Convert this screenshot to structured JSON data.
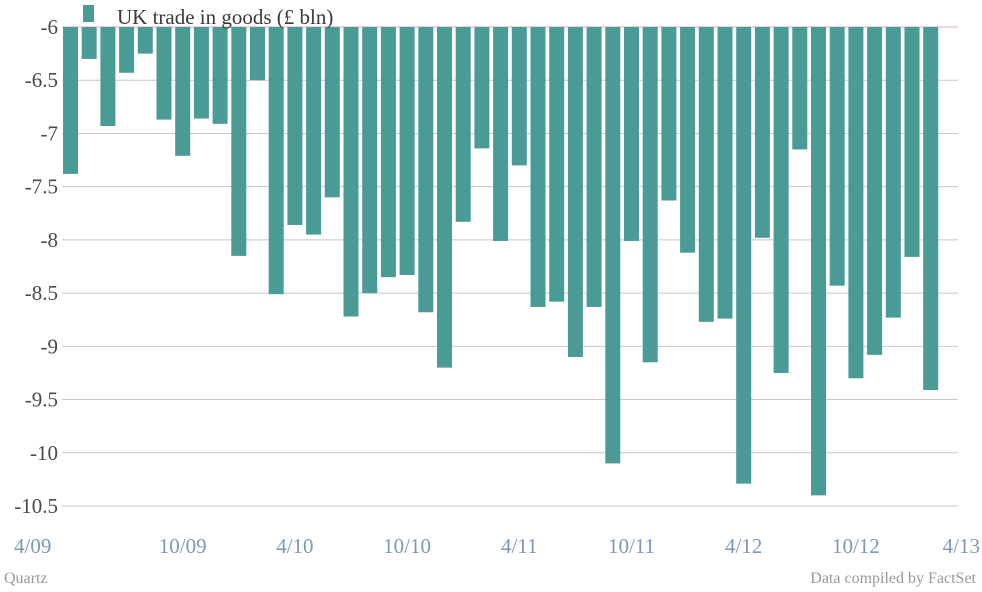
{
  "chart_data": {
    "type": "bar",
    "series": [
      {
        "name": "UK trade in goods (£ bln)",
        "values": [
          -7.38,
          -6.3,
          -6.93,
          -6.43,
          -6.25,
          -6.87,
          -7.21,
          -6.86,
          -6.91,
          -8.15,
          -6.5,
          -8.51,
          -7.86,
          -7.95,
          -7.6,
          -8.72,
          -8.5,
          -8.35,
          -8.33,
          -8.68,
          -9.2,
          -7.83,
          -7.14,
          -8.01,
          -7.3,
          -8.63,
          -8.58,
          -9.1,
          -8.63,
          -10.1,
          -8.01,
          -9.15,
          -7.63,
          -8.12,
          -8.77,
          -8.74,
          -10.29,
          -7.98,
          -9.25,
          -7.15,
          -10.4,
          -8.43,
          -9.3,
          -9.08,
          -8.73,
          -8.16,
          -9.41
        ]
      }
    ],
    "x_tick_labels": [
      "4/09",
      "10/09",
      "4/10",
      "10/10",
      "4/11",
      "10/11",
      "4/12",
      "10/12",
      "4/13"
    ],
    "y_ticks": [
      -6,
      -6.5,
      -7,
      -7.5,
      -8,
      -8.5,
      -9,
      -9.5,
      -10,
      -10.5
    ],
    "ylim": [
      -10.5,
      -6
    ],
    "grid": true,
    "legend_position": "top-left"
  },
  "colors": {
    "bar": "#4a9a96",
    "grid": "#c8c8c8",
    "baseline": "#e0a8c8"
  },
  "footer": {
    "source_left": "Quartz",
    "source_right": "Data compiled by FactSet"
  }
}
